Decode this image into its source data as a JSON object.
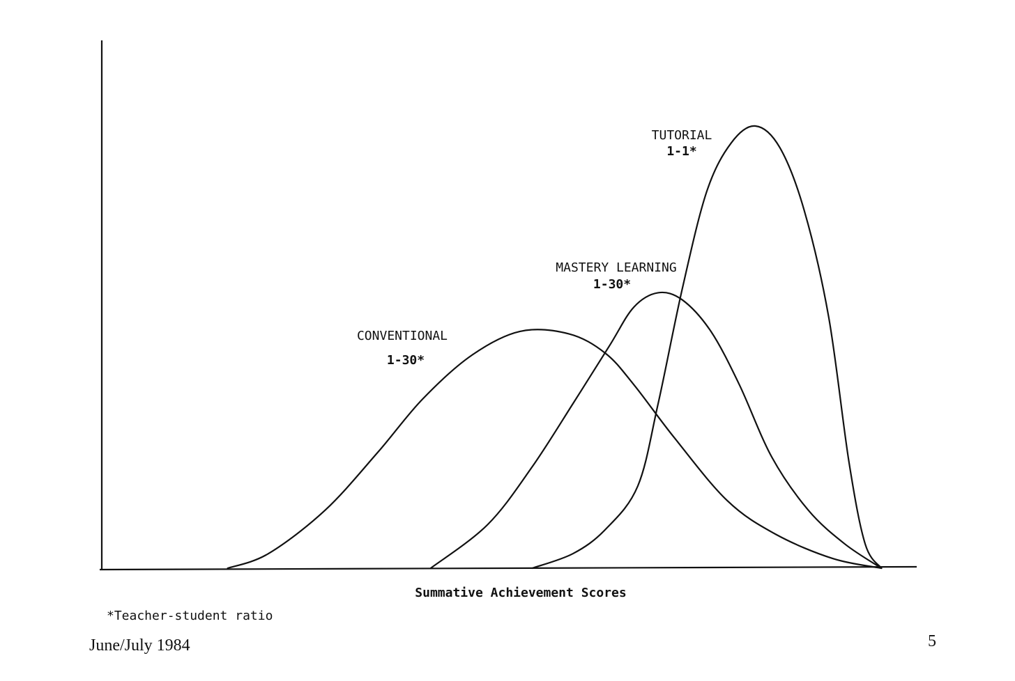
{
  "chart_data": {
    "type": "line",
    "xlabel": "Summative Achievement Scores",
    "ylabel": "",
    "xlim": [
      0,
      100
    ],
    "ylim": [
      0,
      100
    ],
    "grid": false,
    "legend": "none",
    "series": [
      {
        "name": "CONVENTIONAL",
        "ratio": "1-30*",
        "x": [
          15.5,
          20.5,
          27.5,
          34,
          39.5,
          45.5,
          51.5,
          57.5,
          62,
          65.5,
          70.5,
          77,
          83,
          90,
          96
        ],
        "y": [
          0,
          3,
          12,
          24,
          35,
          44,
          49,
          48.5,
          44.5,
          38,
          27,
          14,
          7,
          2,
          0
        ]
      },
      {
        "name": "MASTERY LEARNING",
        "ratio": "1-30*",
        "x": [
          40.5,
          47.5,
          53,
          58,
          62.5,
          65.5,
          68.5,
          71.5,
          75,
          78.5,
          82.5,
          87,
          91.5,
          96
        ],
        "y": [
          0,
          9,
          21,
          34,
          46,
          54,
          57,
          55.5,
          49,
          38,
          23,
          12,
          5,
          0
        ]
      },
      {
        "name": "TUTORIAL",
        "ratio": "1-1*",
        "x": [
          53,
          58,
          62,
          66,
          68.5,
          71.5,
          74.5,
          77.5,
          80.5,
          83.5,
          86.5,
          89.5,
          92,
          94,
          96
        ],
        "y": [
          0,
          3,
          8,
          17,
          34,
          58,
          78,
          88,
          91.5,
          87,
          74,
          52,
          22,
          5,
          0
        ]
      }
    ],
    "footnote": "*Teacher-student ratio"
  },
  "page": {
    "issue": "June/July 1984",
    "page_number": "5"
  }
}
